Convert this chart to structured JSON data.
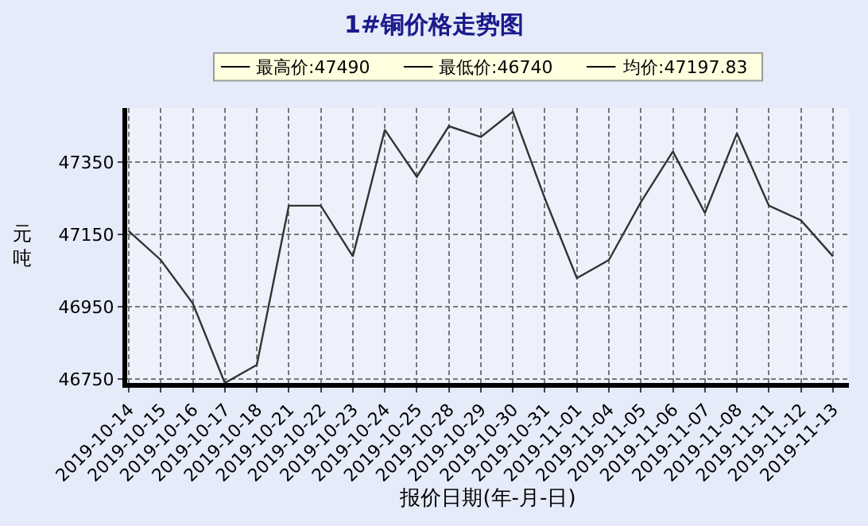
{
  "chart_data": {
    "type": "line",
    "title": "1#铜价格走势图",
    "xlabel": "报价日期(年-月-日)",
    "ylabel": "元吨",
    "categories": [
      "2019-10-14",
      "2019-10-15",
      "2019-10-16",
      "2019-10-17",
      "2019-10-18",
      "2019-10-21",
      "2019-10-22",
      "2019-10-23",
      "2019-10-24",
      "2019-10-25",
      "2019-10-28",
      "2019-10-29",
      "2019-10-30",
      "2019-10-31",
      "2019-11-01",
      "2019-11-04",
      "2019-11-05",
      "2019-11-06",
      "2019-11-07",
      "2019-11-08",
      "2019-11-11",
      "2019-11-12",
      "2019-11-13"
    ],
    "series": [
      {
        "color": "#333333",
        "values": [
          47160,
          47080,
          46960,
          46740,
          46790,
          47230,
          47230,
          47090,
          47440,
          47310,
          47450,
          47420,
          47490,
          47250,
          47030,
          47080,
          47240,
          47380,
          47210,
          47430,
          47230,
          47190,
          47090
        ]
      }
    ],
    "ylim": [
      46740,
      47500
    ],
    "yticks": [
      46750,
      46950,
      47150,
      47350
    ],
    "grid": true,
    "marker": "none",
    "annotations": [
      "最高价:47490",
      "最低价:46740",
      "均价:47197.83"
    ]
  }
}
